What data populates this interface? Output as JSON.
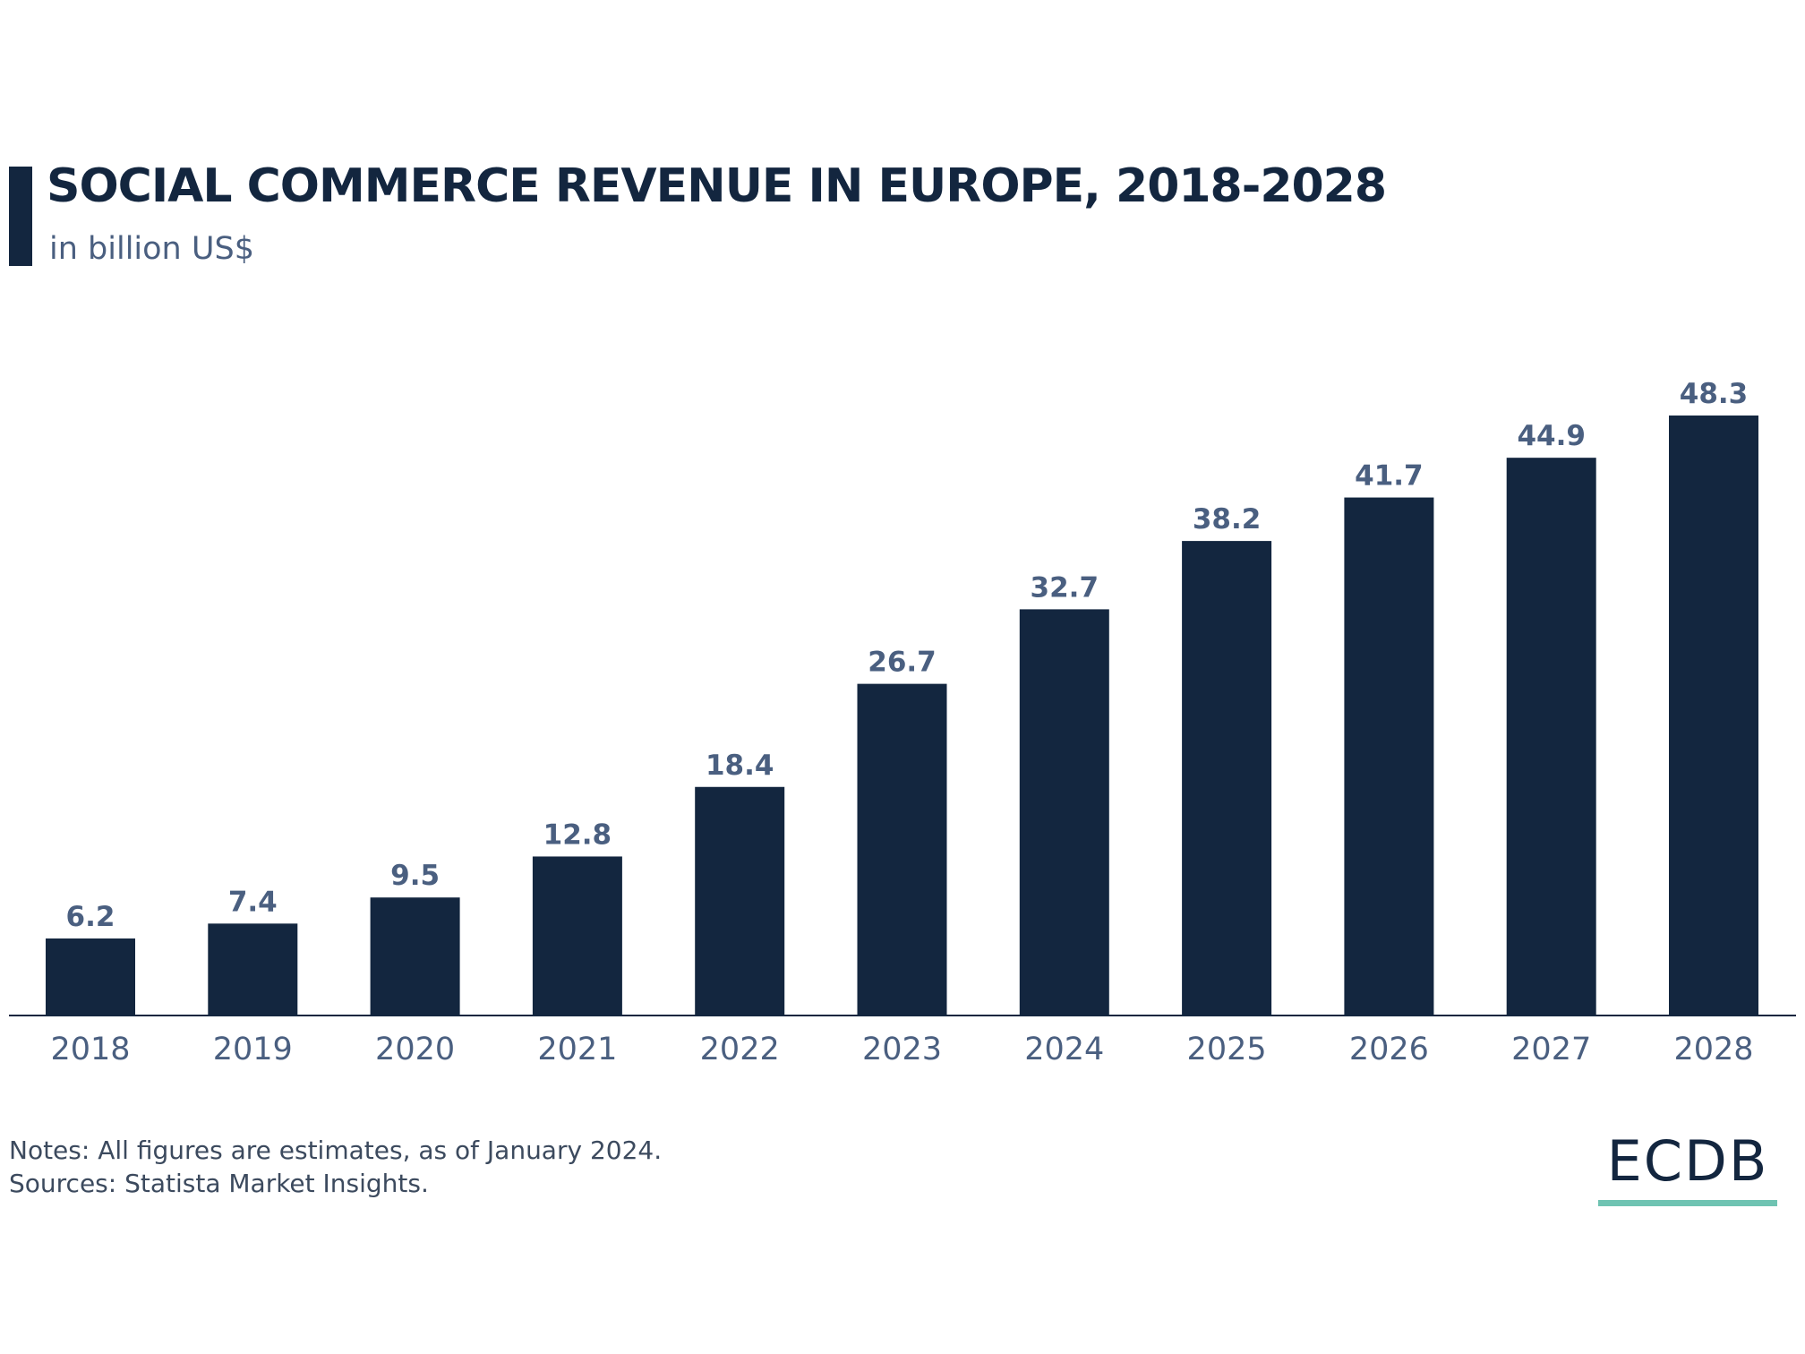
{
  "colors": {
    "bar": "#13263f",
    "value_label": "#4a5f80",
    "axis_label": "#4a5f80",
    "accent": "#6fc3b2"
  },
  "chart_data": {
    "type": "bar",
    "title": "SOCIAL COMMERCE REVENUE IN EUROPE, 2018-2028",
    "subtitle": "in billion US$",
    "categories": [
      "2018",
      "2019",
      "2020",
      "2021",
      "2022",
      "2023",
      "2024",
      "2025",
      "2026",
      "2027",
      "2028"
    ],
    "values": [
      6.2,
      7.4,
      9.5,
      12.8,
      18.4,
      26.7,
      32.7,
      38.2,
      41.7,
      44.9,
      48.3
    ],
    "ylim": [
      0,
      48.3
    ],
    "grid": false,
    "data_labels": true
  },
  "footer": {
    "notes": "Notes: All figures are estimates, as of January 2024.",
    "sources": "Sources: Statista Market Insights.",
    "logo": "ECDB"
  }
}
